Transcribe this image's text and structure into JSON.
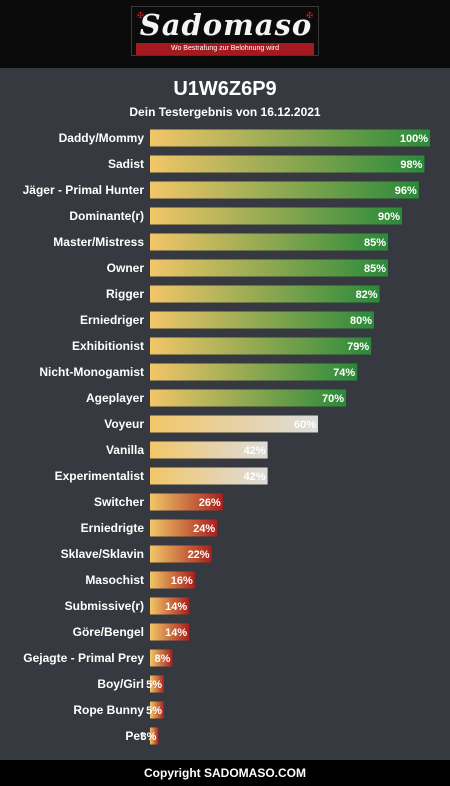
{
  "brand": {
    "logo_name": "Sadomaso",
    "tagline": "Wo Bestrafung zur Belohnung wird"
  },
  "header": {
    "title": "U1W6Z6P9",
    "subtitle": "Dein Testergebnis von 16.12.2021"
  },
  "chart_data": {
    "type": "bar",
    "orientation": "horizontal",
    "value_suffix": "%",
    "xlim": [
      0,
      100
    ],
    "grid": false,
    "categories": [
      "Daddy/Mommy",
      "Sadist",
      "Jäger - Primal Hunter",
      "Dominante(r)",
      "Master/Mistress",
      "Owner",
      "Rigger",
      "Erniedriger",
      "Exhibitionist",
      "Nicht-Monogamist",
      "Ageplayer",
      "Voyeur",
      "Vanilla",
      "Experimentalist",
      "Switcher",
      "Erniedrigte",
      "Sklave/Sklavin",
      "Masochist",
      "Submissive(r)",
      "Göre/Bengel",
      "Gejagte - Primal Prey",
      "Boy/Girl",
      "Rope Bunny",
      "Pet"
    ],
    "values": [
      100,
      98,
      96,
      90,
      85,
      85,
      82,
      80,
      79,
      74,
      70,
      60,
      42,
      42,
      26,
      24,
      22,
      16,
      14,
      14,
      8,
      5,
      5,
      3
    ],
    "colors": {
      "start": "#f2c668",
      "dominant": "#2a8a3a",
      "neutral": "#dcdcdc",
      "submissive": "#a8201c"
    }
  },
  "footer": {
    "copyright": "Copyright SADOMASO.COM"
  }
}
